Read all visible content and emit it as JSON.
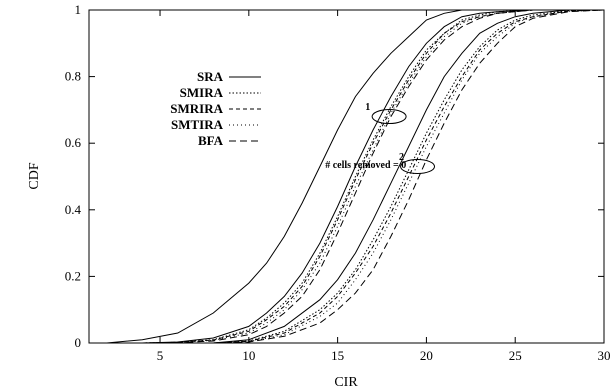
{
  "chart_data": {
    "type": "line",
    "xlabel": "CIR",
    "ylabel": "CDF",
    "xlim": [
      1,
      30
    ],
    "ylim": [
      0,
      1
    ],
    "xticks": [
      5,
      10,
      15,
      20,
      25,
      30
    ],
    "xtick_labels": [
      "5",
      "10",
      "15",
      "20",
      "25",
      "30"
    ],
    "yticks": [
      0,
      0.2,
      0.4,
      0.6,
      0.8,
      1
    ],
    "ytick_labels": [
      "0",
      "0.2",
      "0.4",
      "0.6",
      "0.8",
      "1"
    ],
    "grid": false,
    "legend_position": "left",
    "legend": [
      "SRA",
      "SMIRA",
      "SMRIRA",
      "SMTIRA",
      "BFA"
    ],
    "annotations": [
      {
        "text": "# cells removed = 0",
        "x": 14.3,
        "y": 0.525
      },
      {
        "text": "1",
        "x": 16.7,
        "y": 0.7,
        "ellipse_cx": 17.9,
        "ellipse_cy": 0.68
      },
      {
        "text": "2",
        "x": 18.6,
        "y": 0.55,
        "ellipse_cx": 19.5,
        "ellipse_cy": 0.53
      }
    ],
    "series": [
      {
        "name": "SRA",
        "group": 0,
        "dash": "",
        "x": [
          2,
          4,
          6,
          8,
          10,
          11,
          12,
          13,
          14,
          15,
          16,
          17,
          18,
          19,
          20,
          21,
          22,
          24,
          26,
          28,
          30
        ],
        "y": [
          0,
          0.01,
          0.03,
          0.09,
          0.18,
          0.24,
          0.32,
          0.42,
          0.53,
          0.64,
          0.74,
          0.81,
          0.87,
          0.92,
          0.97,
          0.99,
          1.0,
          1.0,
          1.0,
          1.0,
          1.0
        ]
      },
      {
        "name": "SRA",
        "group": 1,
        "dash": "",
        "x": [
          4,
          6,
          8,
          10,
          11,
          12,
          13,
          14,
          15,
          16,
          17,
          18,
          19,
          20,
          21,
          22,
          23,
          24,
          26,
          28,
          30
        ],
        "y": [
          0,
          0.003,
          0.015,
          0.05,
          0.09,
          0.14,
          0.21,
          0.3,
          0.41,
          0.53,
          0.64,
          0.74,
          0.83,
          0.9,
          0.95,
          0.98,
          0.99,
          0.995,
          1.0,
          1.0,
          1.0
        ]
      },
      {
        "name": "SRA",
        "group": 2,
        "dash": "",
        "x": [
          8,
          10,
          12,
          14,
          15,
          16,
          17,
          18,
          19,
          20,
          21,
          22,
          23,
          24,
          25,
          26,
          28,
          30
        ],
        "y": [
          0,
          0.01,
          0.05,
          0.13,
          0.19,
          0.27,
          0.37,
          0.48,
          0.59,
          0.7,
          0.8,
          0.87,
          0.93,
          0.96,
          0.98,
          0.99,
          1.0,
          1.0
        ]
      },
      {
        "name": "SMIRA",
        "group": 1,
        "dash": "1.5 2",
        "x": [
          4,
          6,
          8,
          10,
          11,
          12,
          13,
          14,
          15,
          16,
          17,
          18,
          19,
          20,
          21,
          22,
          23,
          24,
          26,
          28,
          30
        ],
        "y": [
          0,
          0.002,
          0.01,
          0.04,
          0.075,
          0.12,
          0.18,
          0.27,
          0.38,
          0.5,
          0.61,
          0.71,
          0.8,
          0.88,
          0.93,
          0.97,
          0.985,
          0.995,
          1.0,
          1.0,
          1.0
        ]
      },
      {
        "name": "SMIRA",
        "group": 2,
        "dash": "1.5 2",
        "x": [
          8,
          10,
          12,
          14,
          15,
          16,
          17,
          18,
          19,
          20,
          21,
          22,
          23,
          24,
          25,
          26,
          28,
          30
        ],
        "y": [
          0,
          0.006,
          0.035,
          0.1,
          0.15,
          0.22,
          0.31,
          0.41,
          0.52,
          0.63,
          0.73,
          0.82,
          0.89,
          0.94,
          0.97,
          0.985,
          0.998,
          1.0
        ]
      },
      {
        "name": "SMRIRA",
        "group": 1,
        "dash": "4 3",
        "x": [
          4,
          6,
          8,
          10,
          11,
          12,
          13,
          14,
          15,
          16,
          17,
          18,
          19,
          20,
          21,
          22,
          23,
          24,
          26,
          28,
          30
        ],
        "y": [
          0,
          0.002,
          0.009,
          0.035,
          0.07,
          0.11,
          0.17,
          0.26,
          0.37,
          0.49,
          0.6,
          0.7,
          0.79,
          0.87,
          0.93,
          0.965,
          0.98,
          0.99,
          1.0,
          1.0,
          1.0
        ]
      },
      {
        "name": "SMRIRA",
        "group": 2,
        "dash": "4 3",
        "x": [
          8,
          10,
          12,
          14,
          15,
          16,
          17,
          18,
          19,
          20,
          21,
          22,
          23,
          24,
          25,
          26,
          28,
          30
        ],
        "y": [
          0,
          0.005,
          0.03,
          0.09,
          0.14,
          0.21,
          0.29,
          0.39,
          0.5,
          0.61,
          0.71,
          0.8,
          0.88,
          0.93,
          0.965,
          0.98,
          0.997,
          1.0
        ]
      },
      {
        "name": "SMTIRA",
        "group": 1,
        "dash": "1 3",
        "x": [
          4,
          6,
          8,
          10,
          11,
          12,
          13,
          14,
          15,
          16,
          17,
          18,
          19,
          20,
          21,
          22,
          23,
          24,
          26,
          28,
          30
        ],
        "y": [
          0,
          0.002,
          0.008,
          0.03,
          0.06,
          0.1,
          0.16,
          0.24,
          0.35,
          0.47,
          0.58,
          0.69,
          0.78,
          0.86,
          0.92,
          0.96,
          0.98,
          0.99,
          1.0,
          1.0,
          1.0
        ]
      },
      {
        "name": "SMTIRA",
        "group": 2,
        "dash": "1 3",
        "x": [
          8,
          10,
          12,
          14,
          15,
          16,
          17,
          18,
          19,
          20,
          21,
          22,
          23,
          24,
          25,
          26,
          28,
          30
        ],
        "y": [
          0,
          0.004,
          0.025,
          0.08,
          0.12,
          0.19,
          0.27,
          0.37,
          0.48,
          0.59,
          0.69,
          0.79,
          0.87,
          0.92,
          0.96,
          0.98,
          0.996,
          1.0
        ]
      },
      {
        "name": "BFA",
        "group": 1,
        "dash": "7 4",
        "x": [
          4,
          6,
          8,
          10,
          11,
          12,
          13,
          14,
          15,
          16,
          17,
          18,
          19,
          20,
          21,
          22,
          23,
          24,
          26,
          28,
          30
        ],
        "y": [
          0,
          0.001,
          0.006,
          0.025,
          0.05,
          0.09,
          0.14,
          0.22,
          0.33,
          0.45,
          0.57,
          0.68,
          0.77,
          0.85,
          0.91,
          0.95,
          0.975,
          0.99,
          1.0,
          1.0,
          1.0
        ]
      },
      {
        "name": "BFA",
        "group": 2,
        "dash": "7 4",
        "x": [
          8,
          10,
          12,
          14,
          15,
          16,
          17,
          18,
          19,
          20,
          21,
          22,
          23,
          24,
          25,
          26,
          28,
          30
        ],
        "y": [
          0,
          0.003,
          0.02,
          0.06,
          0.1,
          0.15,
          0.22,
          0.32,
          0.43,
          0.55,
          0.66,
          0.76,
          0.84,
          0.9,
          0.95,
          0.975,
          0.995,
          1.0
        ]
      }
    ]
  }
}
